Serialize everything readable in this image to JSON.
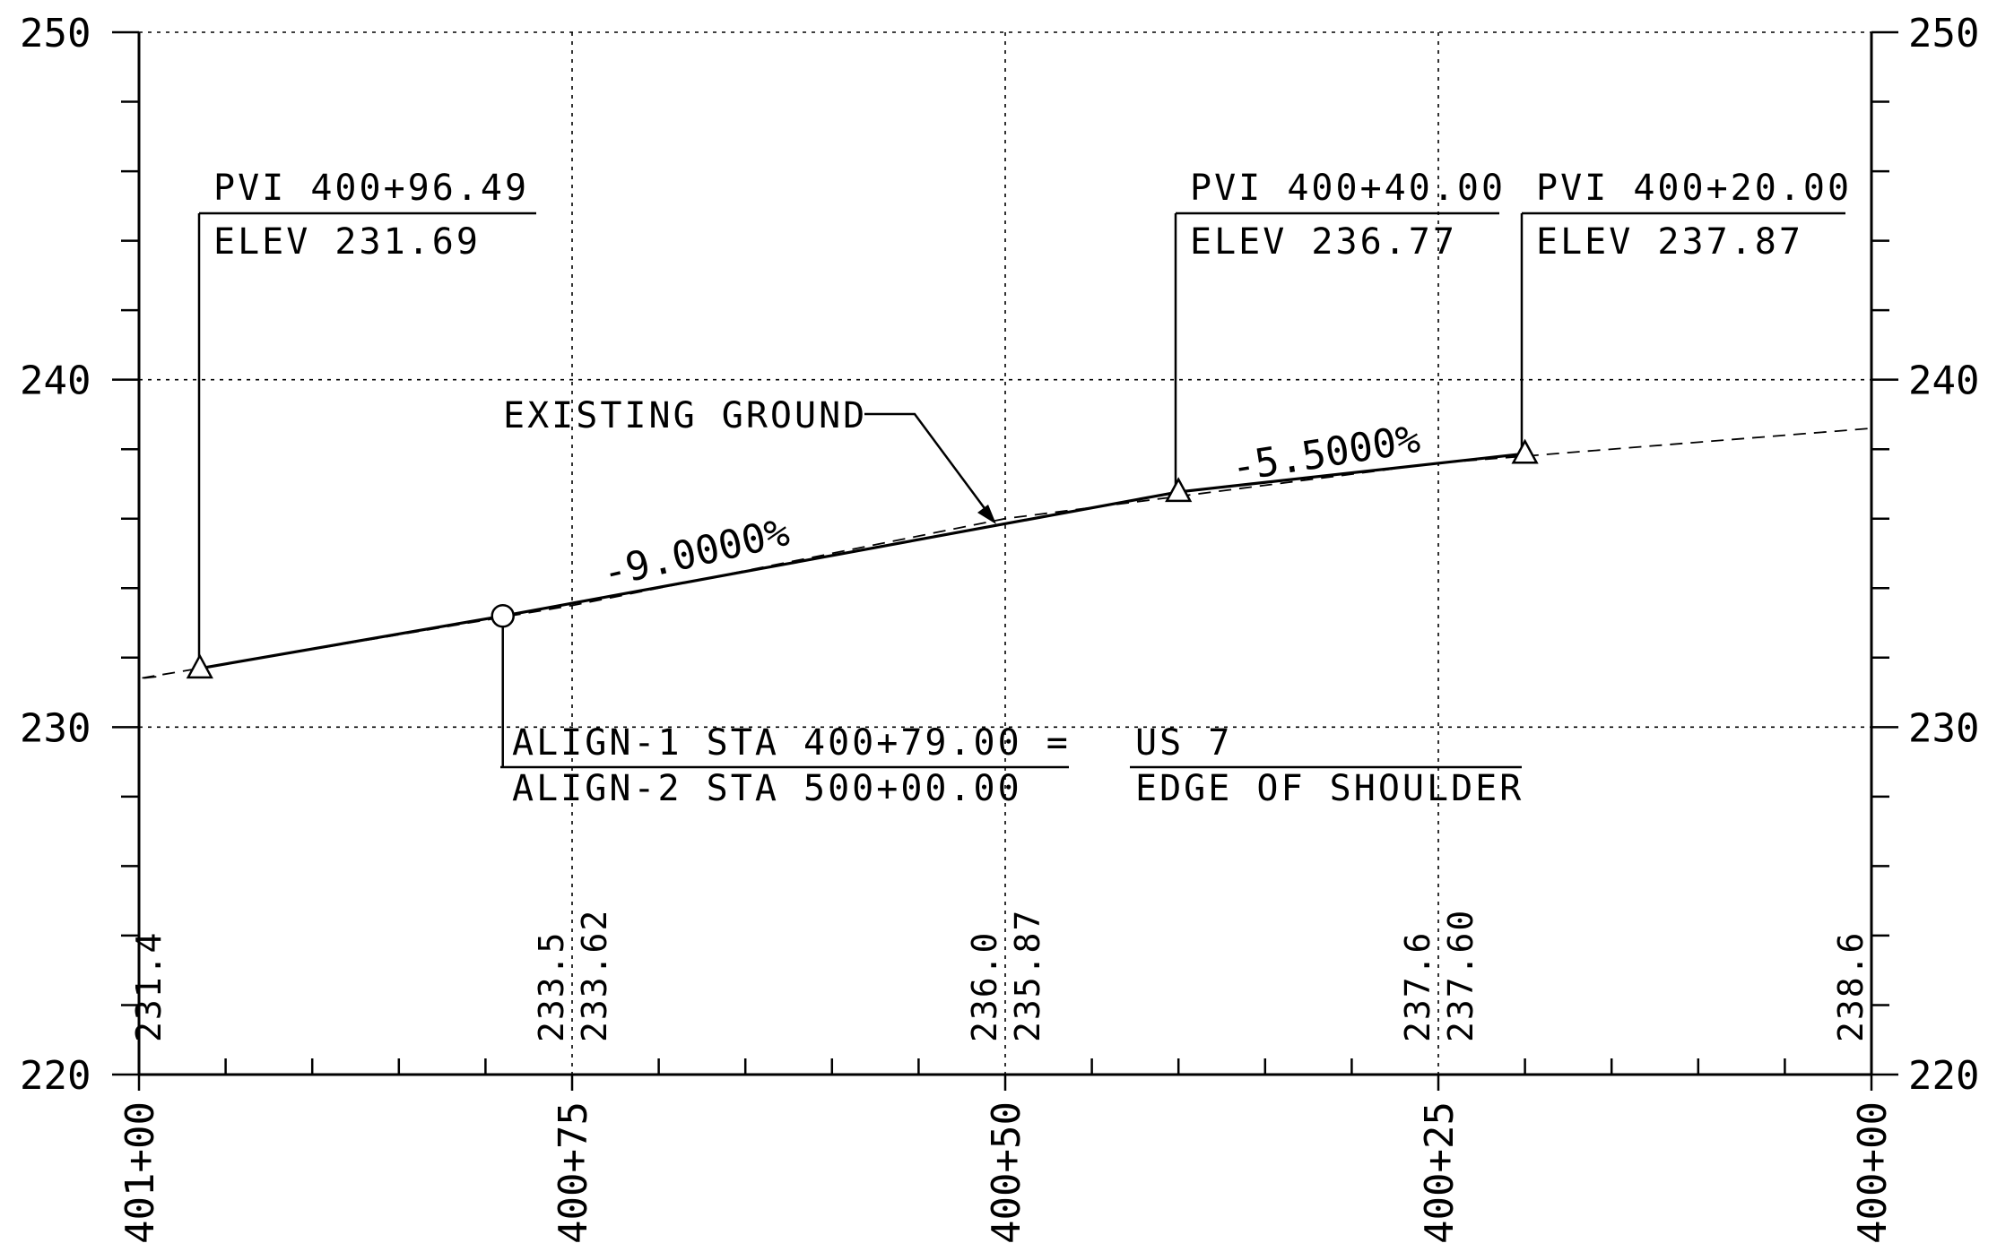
{
  "chart_data": {
    "type": "line",
    "title": "",
    "xlabel": "",
    "ylabel": "",
    "ylim": [
      220,
      250
    ],
    "y_ticks": [
      "220",
      "230",
      "240",
      "250"
    ],
    "x_ticks": [
      "401+00",
      "400+75",
      "400+50",
      "400+25",
      "400+00"
    ],
    "grid": true,
    "series": [
      {
        "name": "EXISTING GROUND",
        "style": "dashed",
        "x": [
          101.0,
          100.75,
          100.5,
          100.25,
          100.0
        ],
        "y": [
          231.4,
          233.5,
          236.0,
          237.6,
          238.6
        ]
      },
      {
        "name": "",
        "style": "solid",
        "x": [
          100.9649,
          100.79,
          100.4,
          100.2
        ],
        "y": [
          231.69,
          233.2,
          236.77,
          237.87
        ]
      }
    ],
    "pvis": [
      {
        "line1": "PVI 400+96.49",
        "line2": "ELEV 231.69",
        "x": 100.9649,
        "y": 231.69
      },
      {
        "line1": "PVI 400+40.00",
        "line2": "ELEV 236.77",
        "x": 100.4,
        "y": 236.77
      },
      {
        "line1": "PVI 400+20.00",
        "line2": "ELEV 237.87",
        "x": 100.2,
        "y": 237.87
      }
    ],
    "grades": [
      {
        "label": "-9.0000%"
      },
      {
        "label": "-5.5000%"
      }
    ],
    "annotations": {
      "existing_ground": "EXISTING GROUND",
      "equation_line1": "ALIGN-1 STA 400+79.00 =",
      "equation_line2": "ALIGN-2 STA 500+00.00",
      "us7_line1": "US 7",
      "us7_line2": "EDGE OF SHOULDER"
    },
    "ground_elevations": [
      {
        "x": 101.0,
        "label": "231.4"
      },
      {
        "x": 100.75,
        "label": "233.5"
      },
      {
        "x": 100.5,
        "label": "236.0"
      },
      {
        "x": 100.25,
        "label": "237.6"
      },
      {
        "x": 100.0,
        "label": "238.6"
      }
    ],
    "grade_elevations": [
      {
        "x": 100.75,
        "label": "233.62"
      },
      {
        "x": 100.5,
        "label": "235.87"
      },
      {
        "x": 100.25,
        "label": "237.60"
      }
    ]
  }
}
